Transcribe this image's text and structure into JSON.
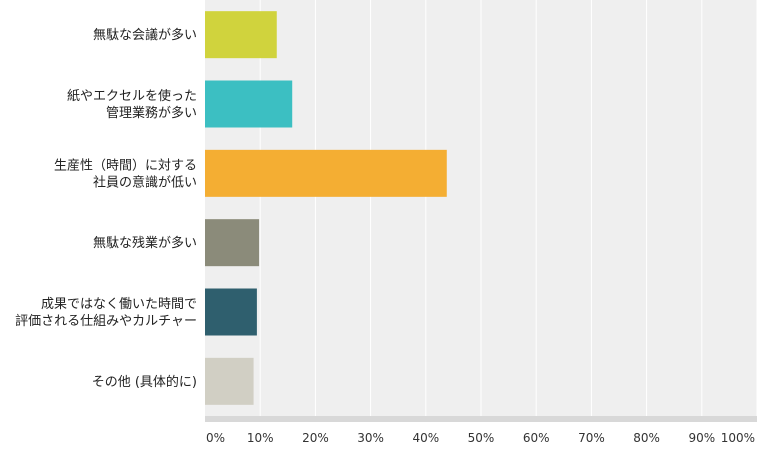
{
  "chart_data": {
    "type": "bar",
    "orientation": "horizontal",
    "categories": [
      [
        "無駄な会議が多い"
      ],
      [
        "紙やエクセルを使った",
        "管理業務が多い"
      ],
      [
        "生産性（時間）に対する",
        "社員の意識が低い"
      ],
      [
        "無駄な残業が多い"
      ],
      [
        "成果ではなく働いた時間で",
        "評価される仕組みやカルチャー"
      ],
      [
        "その他 (具体的に)"
      ]
    ],
    "values": [
      13,
      15.8,
      43.8,
      9.8,
      9.4,
      8.8
    ],
    "colors": [
      "#d0d33d",
      "#3cbfc2",
      "#f4ae33",
      "#8b8b7a",
      "#2f5f6e",
      "#d1cfc4"
    ],
    "xlim": [
      0,
      100
    ],
    "ticks": [
      0,
      10,
      20,
      30,
      40,
      50,
      60,
      70,
      80,
      90,
      100
    ],
    "tick_labels": [
      "0%",
      "10%",
      "20%",
      "30%",
      "40%",
      "50%",
      "60%",
      "70%",
      "80%",
      "90%",
      "100%"
    ],
    "grid": true,
    "plot_background": "#efefef",
    "grid_color": "#ffffff",
    "axis_color": "#d8d8d8"
  }
}
